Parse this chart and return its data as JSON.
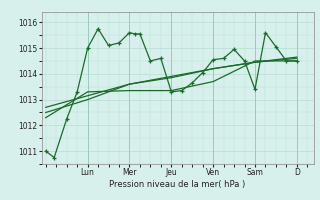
{
  "bg_color": "#d7f0eb",
  "grid_color": "#b8ddd6",
  "line_color": "#1a6b2a",
  "xlabel": "Pression niveau de la mer( hPa )",
  "ylim": [
    1010.5,
    1016.4
  ],
  "yticks": [
    1011,
    1012,
    1013,
    1014,
    1015,
    1016
  ],
  "day_labels": [
    "Lun",
    "Mer",
    "Jeu",
    "Ven",
    "Sam",
    "D"
  ],
  "day_positions": [
    2.0,
    4.0,
    6.0,
    8.0,
    10.0,
    12.0
  ],
  "xlim": [
    -0.2,
    12.8
  ],
  "series1": {
    "x": [
      0.0,
      0.4,
      1.0,
      1.5,
      2.0,
      2.5,
      3.0,
      3.5,
      4.0,
      4.25,
      4.5,
      5.0,
      5.5,
      6.0,
      6.5,
      7.0,
      7.5,
      8.0,
      8.5,
      9.0,
      9.5,
      10.0,
      10.5,
      11.0,
      11.5,
      12.0
    ],
    "y": [
      1011.0,
      1010.75,
      1012.25,
      1013.3,
      1015.0,
      1015.75,
      1015.1,
      1015.2,
      1015.6,
      1015.55,
      1015.55,
      1014.5,
      1014.6,
      1013.3,
      1013.35,
      1013.65,
      1014.05,
      1014.55,
      1014.6,
      1014.95,
      1014.5,
      1013.4,
      1015.6,
      1015.05,
      1014.5,
      1014.5
    ]
  },
  "series2": {
    "x": [
      0.0,
      2.0,
      4.0,
      6.0,
      8.0,
      10.0,
      12.0
    ],
    "y": [
      1012.3,
      1013.3,
      1013.35,
      1013.35,
      1013.7,
      1014.5,
      1014.5
    ]
  },
  "series3": {
    "x": [
      0.0,
      2.0,
      4.0,
      6.0,
      8.0,
      10.0,
      12.0
    ],
    "y": [
      1012.5,
      1013.0,
      1013.6,
      1013.85,
      1014.2,
      1014.45,
      1014.6
    ]
  },
  "series4": {
    "x": [
      0.0,
      2.0,
      4.0,
      6.0,
      8.0,
      10.0,
      12.0
    ],
    "y": [
      1012.7,
      1013.15,
      1013.6,
      1013.9,
      1014.2,
      1014.45,
      1014.65
    ]
  }
}
